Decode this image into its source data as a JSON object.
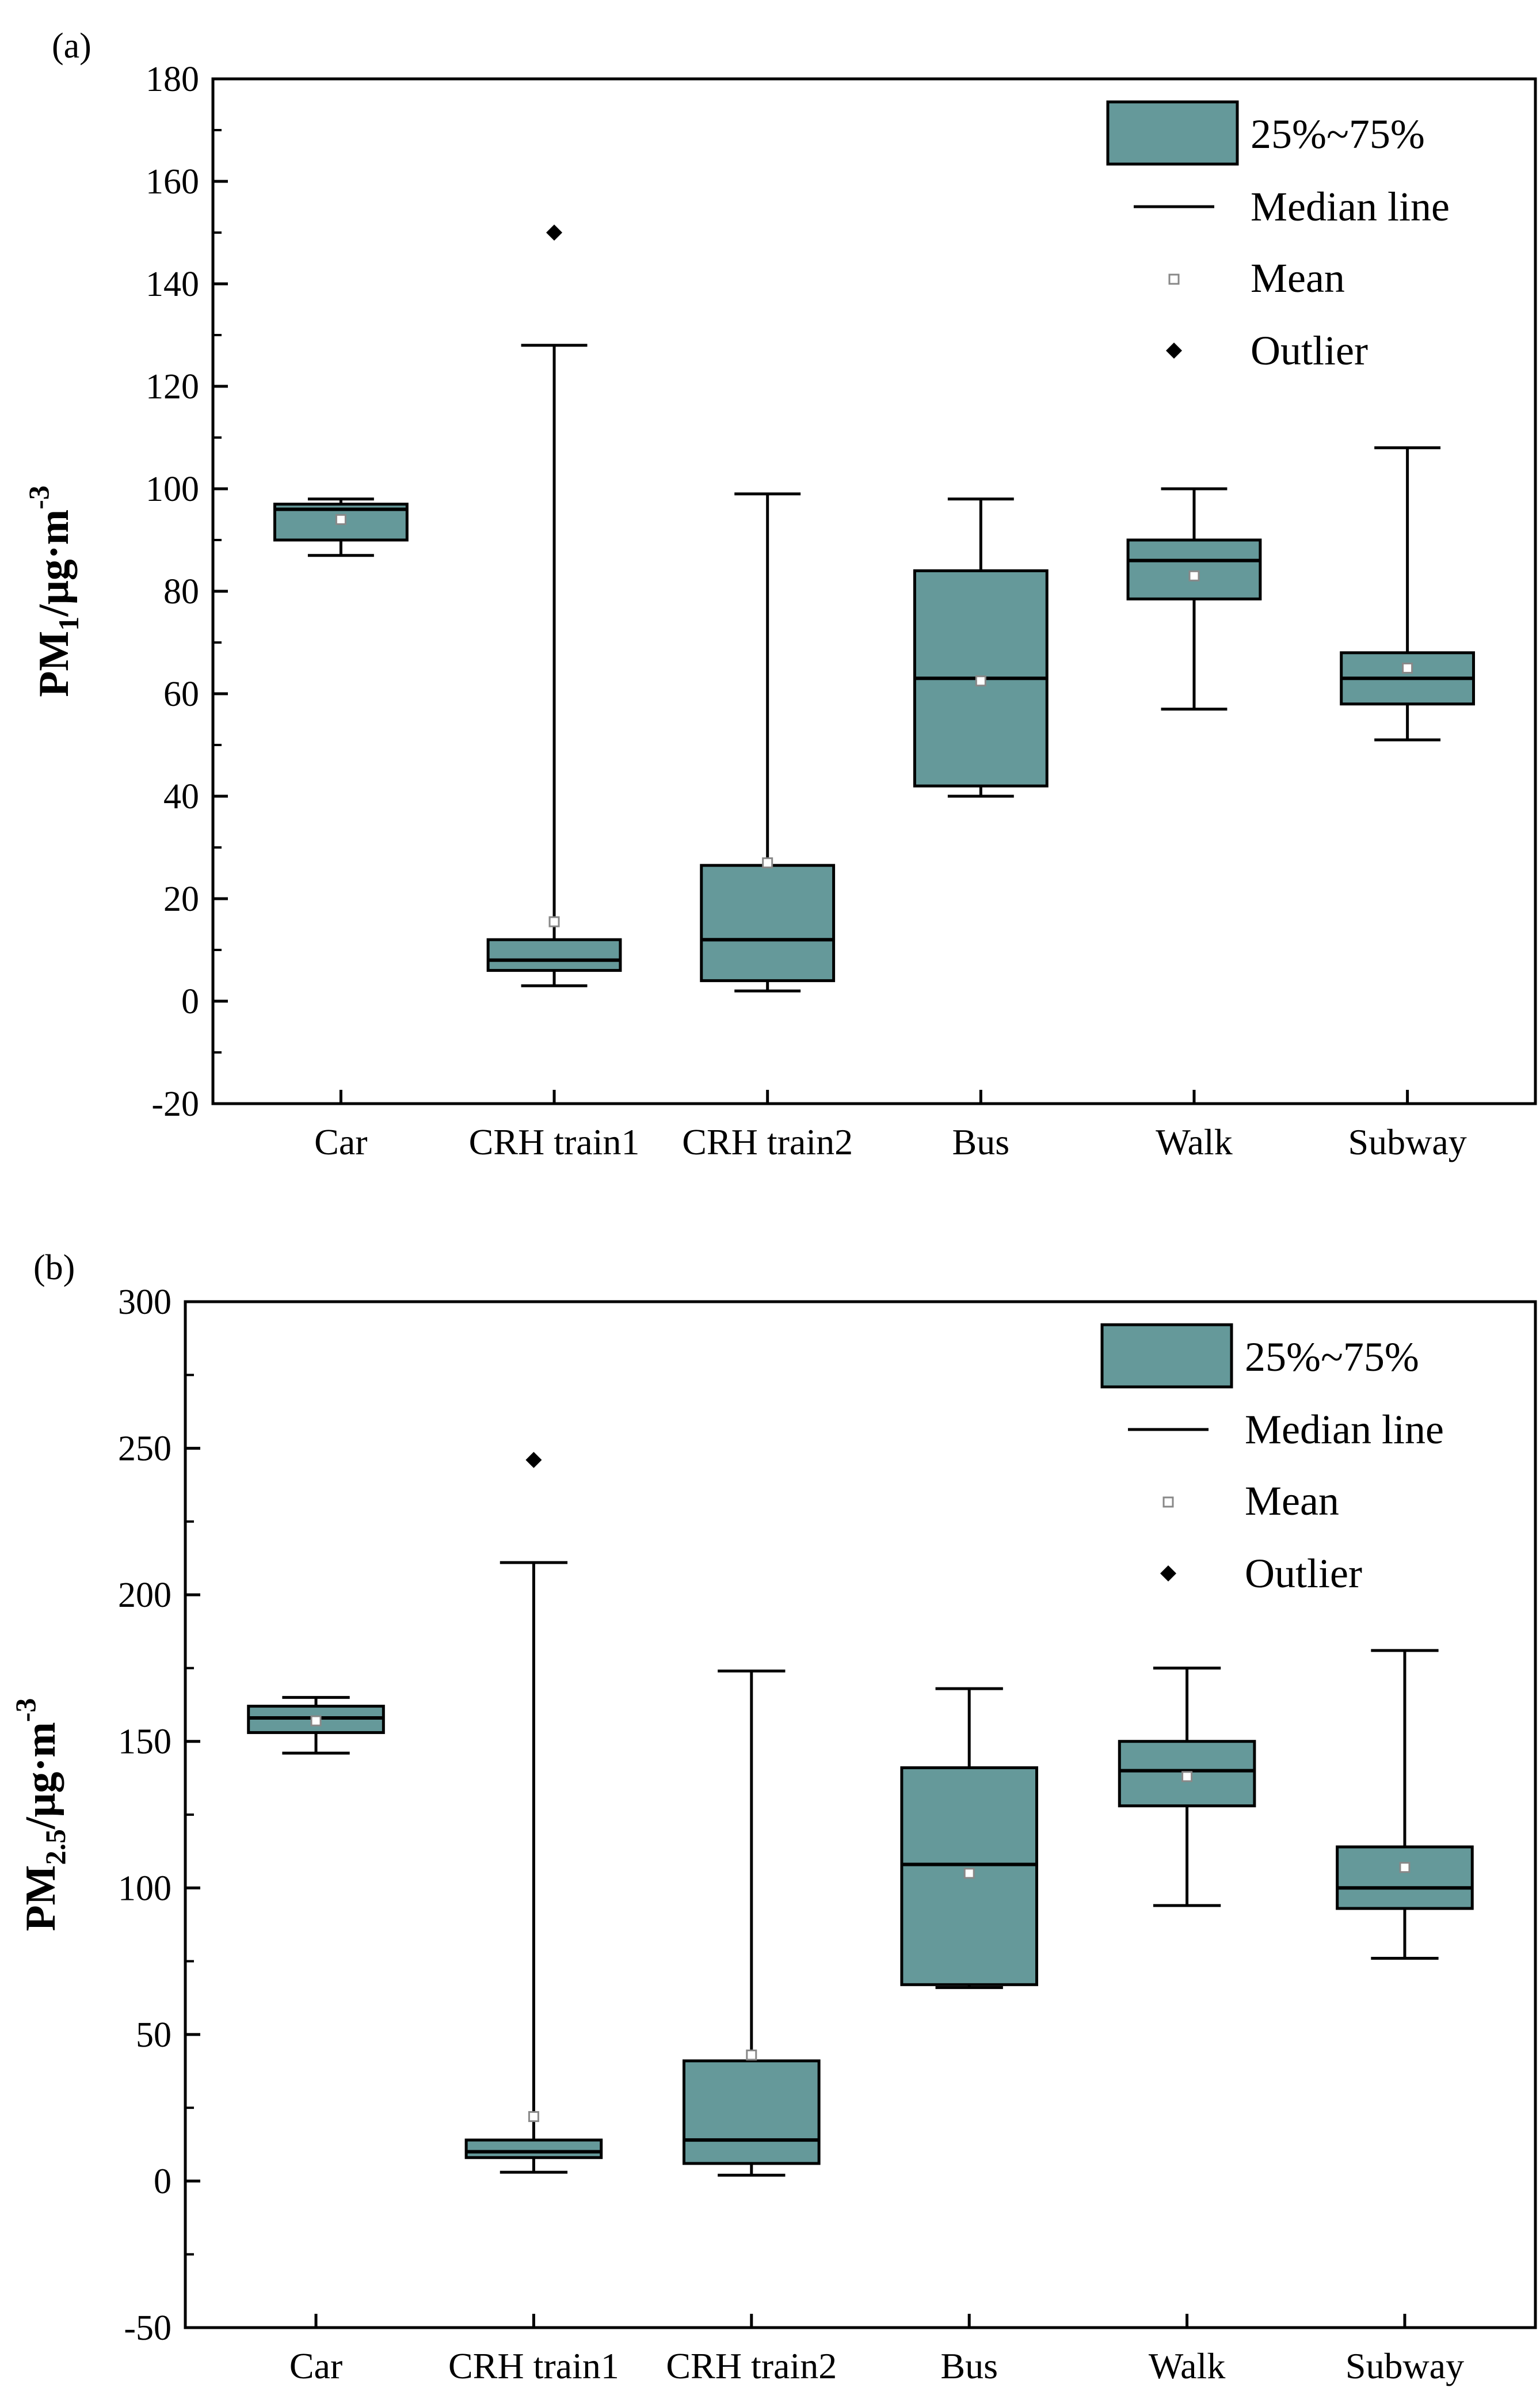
{
  "chart_data": [
    {
      "type": "box",
      "panel_label": "(a)",
      "ylabel": {
        "base": "PM",
        "sub": "1",
        "unit": "/μg·m",
        "sup": "-3"
      },
      "ylim": [
        -20,
        180
      ],
      "yticks": [
        -20,
        0,
        20,
        40,
        60,
        80,
        100,
        120,
        140,
        160,
        180
      ],
      "categories": [
        "Car",
        "CRH train1",
        "CRH train2",
        "Bus",
        "Walk",
        "Subway"
      ],
      "boxes": [
        {
          "q1": 90,
          "median": 96,
          "q3": 97,
          "whisker_low": 87,
          "whisker_high": 98,
          "mean": 94,
          "outliers": []
        },
        {
          "q1": 6,
          "median": 8,
          "q3": 12,
          "whisker_low": 3,
          "whisker_high": 128,
          "mean": 15.5,
          "outliers": [
            150
          ]
        },
        {
          "q1": 4,
          "median": 12,
          "q3": 26.5,
          "whisker_low": 2,
          "whisker_high": 99,
          "mean": 27,
          "outliers": []
        },
        {
          "q1": 42,
          "median": 63,
          "q3": 84,
          "whisker_low": 40,
          "whisker_high": 98,
          "mean": 62.5,
          "outliers": []
        },
        {
          "q1": 78.5,
          "median": 86,
          "q3": 90,
          "whisker_low": 57,
          "whisker_high": 100,
          "mean": 83,
          "outliers": []
        },
        {
          "q1": 58,
          "median": 63,
          "q3": 68,
          "whisker_low": 51,
          "whisker_high": 108,
          "mean": 65,
          "outliers": []
        }
      ],
      "legend": {
        "box": "25%~75%",
        "median": "Median line",
        "mean": "Mean",
        "outlier": "Outlier"
      }
    },
    {
      "type": "box",
      "panel_label": "(b)",
      "ylabel": {
        "base": "PM",
        "sub": "2.5",
        "unit": "/μg·m",
        "sup": "-3"
      },
      "ylim": [
        -50,
        300
      ],
      "yticks": [
        -50,
        0,
        50,
        100,
        150,
        200,
        250,
        300
      ],
      "categories": [
        "Car",
        "CRH train1",
        "CRH train2",
        "Bus",
        "Walk",
        "Subway"
      ],
      "boxes": [
        {
          "q1": 153,
          "median": 158,
          "q3": 162,
          "whisker_low": 146,
          "whisker_high": 165,
          "mean": 157,
          "outliers": []
        },
        {
          "q1": 8,
          "median": 10,
          "q3": 14,
          "whisker_low": 3,
          "whisker_high": 211,
          "mean": 22,
          "outliers": [
            246
          ]
        },
        {
          "q1": 6,
          "median": 14,
          "q3": 41,
          "whisker_low": 2,
          "whisker_high": 174,
          "mean": 43,
          "outliers": []
        },
        {
          "q1": 67,
          "median": 108,
          "q3": 141,
          "whisker_low": 66,
          "whisker_high": 168,
          "mean": 105,
          "outliers": []
        },
        {
          "q1": 128,
          "median": 140,
          "q3": 150,
          "whisker_low": 94,
          "whisker_high": 175,
          "mean": 138,
          "outliers": []
        },
        {
          "q1": 93,
          "median": 100,
          "q3": 114,
          "whisker_low": 76,
          "whisker_high": 181,
          "mean": 107,
          "outliers": []
        }
      ],
      "legend": {
        "box": "25%~75%",
        "median": "Median line",
        "mean": "Mean",
        "outlier": "Outlier"
      }
    }
  ],
  "colors": {
    "box_fill": "#65999A",
    "stroke": "#000000",
    "mean_marker": "#888888"
  }
}
